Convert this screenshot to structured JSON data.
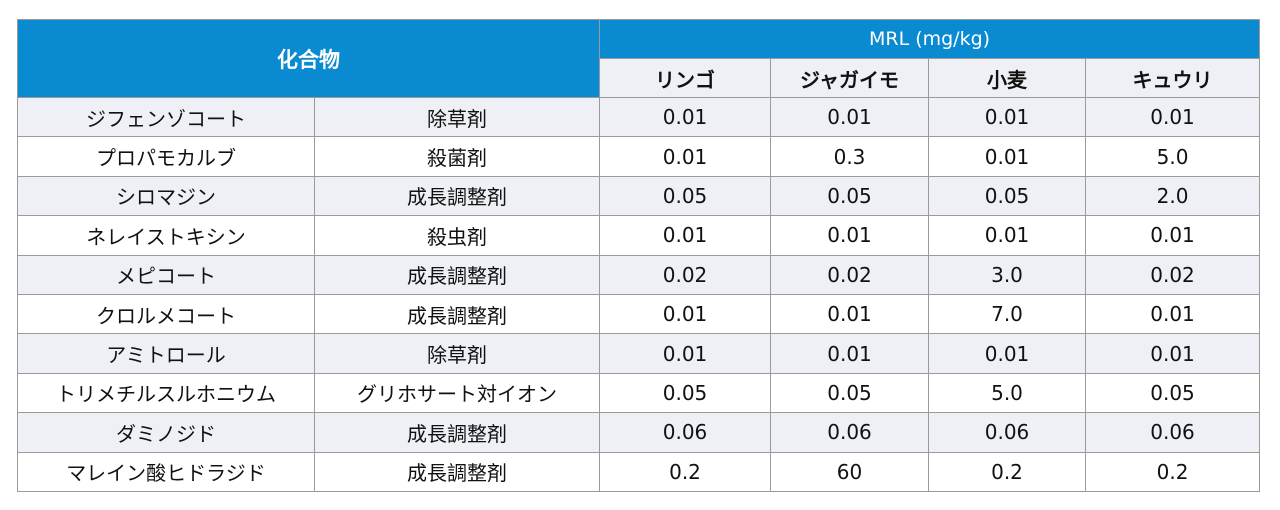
{
  "header": {
    "compound": "化合物",
    "mrl": "MRL (mg/kg)",
    "crops": [
      "リンゴ",
      "ジャガイモ",
      "小麦",
      "キュウリ"
    ]
  },
  "rows": [
    {
      "name": "ジフェンゾコート",
      "type": "除草剤",
      "values": [
        "0.01",
        "0.01",
        "0.01",
        "0.01"
      ]
    },
    {
      "name": "プロパモカルブ",
      "type": "殺菌剤",
      "values": [
        "0.01",
        "0.3",
        "0.01",
        "5.0"
      ]
    },
    {
      "name": "シロマジン",
      "type": "成長調整剤",
      "values": [
        "0.05",
        "0.05",
        "0.05",
        "2.0"
      ]
    },
    {
      "name": "ネレイストキシン",
      "type": "殺虫剤",
      "values": [
        "0.01",
        "0.01",
        "0.01",
        "0.01"
      ]
    },
    {
      "name": "メピコート",
      "type": "成長調整剤",
      "values": [
        "0.02",
        "0.02",
        "3.0",
        "0.02"
      ]
    },
    {
      "name": "クロルメコート",
      "type": "成長調整剤",
      "values": [
        "0.01",
        "0.01",
        "7.0",
        "0.01"
      ]
    },
    {
      "name": "アミトロール",
      "type": "除草剤",
      "values": [
        "0.01",
        "0.01",
        "0.01",
        "0.01"
      ]
    },
    {
      "name": "トリメチルスルホニウム",
      "type": "グリホサート対イオン",
      "values": [
        "0.05",
        "0.05",
        "5.0",
        "0.05"
      ]
    },
    {
      "name": "ダミノジド",
      "type": "成長調整剤",
      "values": [
        "0.06",
        "0.06",
        "0.06",
        "0.06"
      ]
    },
    {
      "name": "マレイン酸ヒドラジド",
      "type": "成長調整剤",
      "values": [
        "0.2",
        "60",
        "0.2",
        "0.2"
      ]
    }
  ]
}
